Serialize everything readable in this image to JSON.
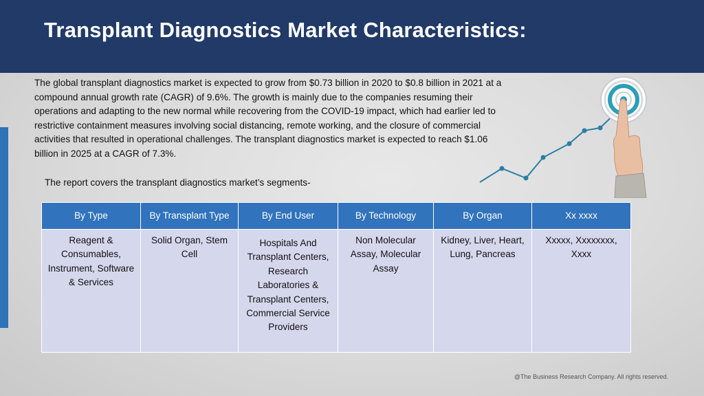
{
  "header": {
    "title": "Transplant Diagnostics Market Characteristics:"
  },
  "body": {
    "paragraph": "The global transplant diagnostics market is expected to grow from $0.73 billion in 2020 to $0.8 billion in 2021 at a compound annual growth rate (CAGR) of 9.6%. The growth is mainly due to the companies resuming their operations and adapting to the new normal while recovering from the COVID-19 impact, which had earlier led to restrictive containment measures involving social distancing, remote working, and the closure of commercial activities that resulted in operational challenges. The transplant diagnostics market is expected to reach $1.06 billion in 2025 at a CAGR of 7.3%.",
    "segments_intro": "The report covers the transplant diagnostics market’s segments-"
  },
  "table": {
    "headers": [
      "By Type",
      "By Transplant Type",
      "By End User",
      "By Technology",
      "By Organ",
      "Xx xxxx"
    ],
    "cells": [
      "Reagent & Consumables, Instrument, Software & Services",
      "Solid Organ, Stem Cell",
      "Hospitals And Transplant Centers, Research Laboratories & Transplant Centers, Commercial Service Providers",
      "Non Molecular Assay, Molecular Assay",
      "Kidney, Liver, Heart, Lung, Pancreas",
      "Xxxxx, Xxxxxxxx, Xxxx"
    ]
  },
  "footer": {
    "copyright": "@The Business Research Company. All rights reserved."
  },
  "colors": {
    "header_bg": "#213a68",
    "table_header_bg": "#3173bd",
    "table_cell_bg": "#d5d8ec",
    "accent": "#2e73b8",
    "chart_line": "#2a7fa4"
  },
  "icons": [
    "target-icon",
    "pointing-hand-icon",
    "growth-line-icon"
  ]
}
